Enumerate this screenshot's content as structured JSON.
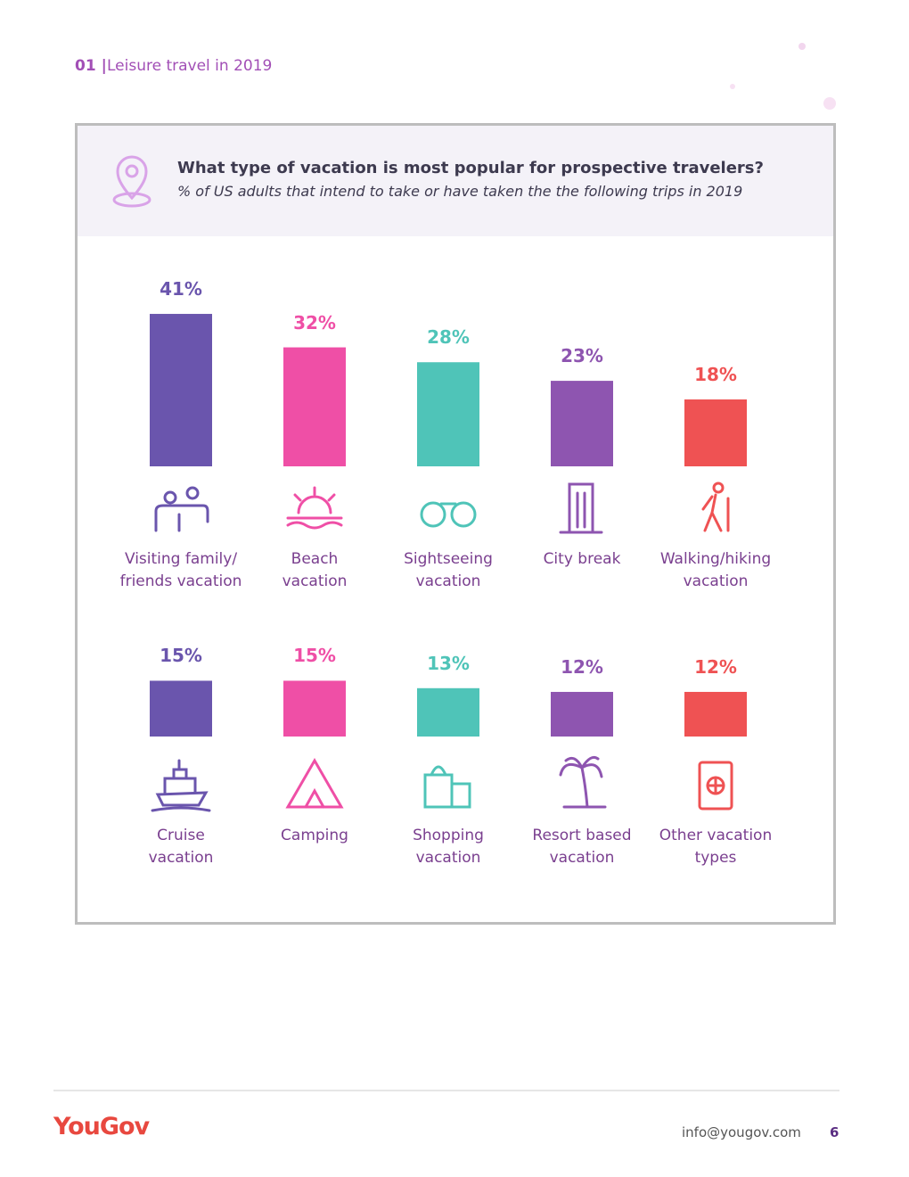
{
  "section": {
    "number": "01 |",
    "title": "Leisure travel in 2019"
  },
  "chart_data": {
    "type": "bar",
    "title": "What type of vacation is most popular for prospective travelers?",
    "subtitle": "% of US adults that intend to take or have taken the the following trips in 2019",
    "categories": [
      "Visiting family/\nfriends vacation",
      "Beach\nvacation",
      "Sightseeing\nvacation",
      "City break",
      "Walking/hiking\nvacation",
      "Cruise\nvacation",
      "Camping",
      "Shopping\nvacation",
      "Resort based\nvacation",
      "Other vacation\ntypes"
    ],
    "values": [
      41,
      32,
      28,
      23,
      18,
      15,
      15,
      13,
      12,
      12
    ],
    "value_labels": [
      "41%",
      "32%",
      "28%",
      "23%",
      "18%",
      "15%",
      "15%",
      "13%",
      "12%",
      "12%"
    ],
    "colors": [
      "#6a55ad",
      "#ef4fa6",
      "#4fc4b8",
      "#8e55b0",
      "#ef5253",
      "#6a55ad",
      "#ef4fa6",
      "#4fc4b8",
      "#8e55b0",
      "#ef5253"
    ]
  },
  "footer": {
    "brand": "YouGov",
    "email": "info@yougov.com",
    "page": "6"
  }
}
